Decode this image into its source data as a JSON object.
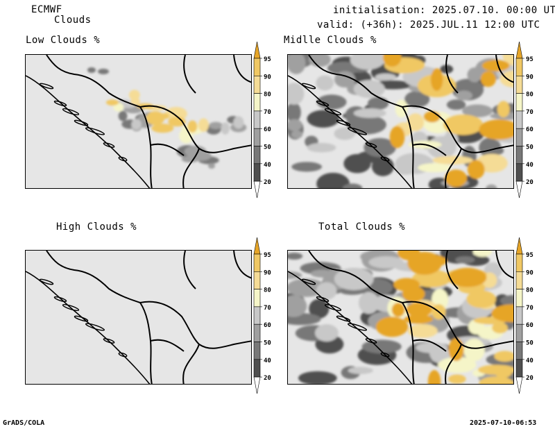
{
  "header": {
    "model": "ECMWF",
    "field": "Clouds",
    "init": "initialisation: 2025.07.10. 00:00 UTC",
    "valid": "valid: (+36h): 2025.JUL.11 12:00 UTC"
  },
  "footer": {
    "left": "GrADS/COLA",
    "right": "2025-07-10-06:53"
  },
  "colorbar": {
    "levels": [
      "20",
      "40",
      "50",
      "60",
      "70",
      "80",
      "90",
      "95"
    ],
    "colors": [
      "#ffffff",
      "#505050",
      "#787878",
      "#a0a0a0",
      "#c8c8c8",
      "#f5f5c8",
      "#f5dc96",
      "#f0c864",
      "#e6a528"
    ]
  },
  "panels": [
    {
      "title": "Low Clouds %",
      "coverage": "low"
    },
    {
      "title": "Midlle Clouds %",
      "coverage": "medium"
    },
    {
      "title": "High Clouds %",
      "coverage": "none"
    },
    {
      "title": "Total Clouds %",
      "coverage": "high"
    }
  ]
}
